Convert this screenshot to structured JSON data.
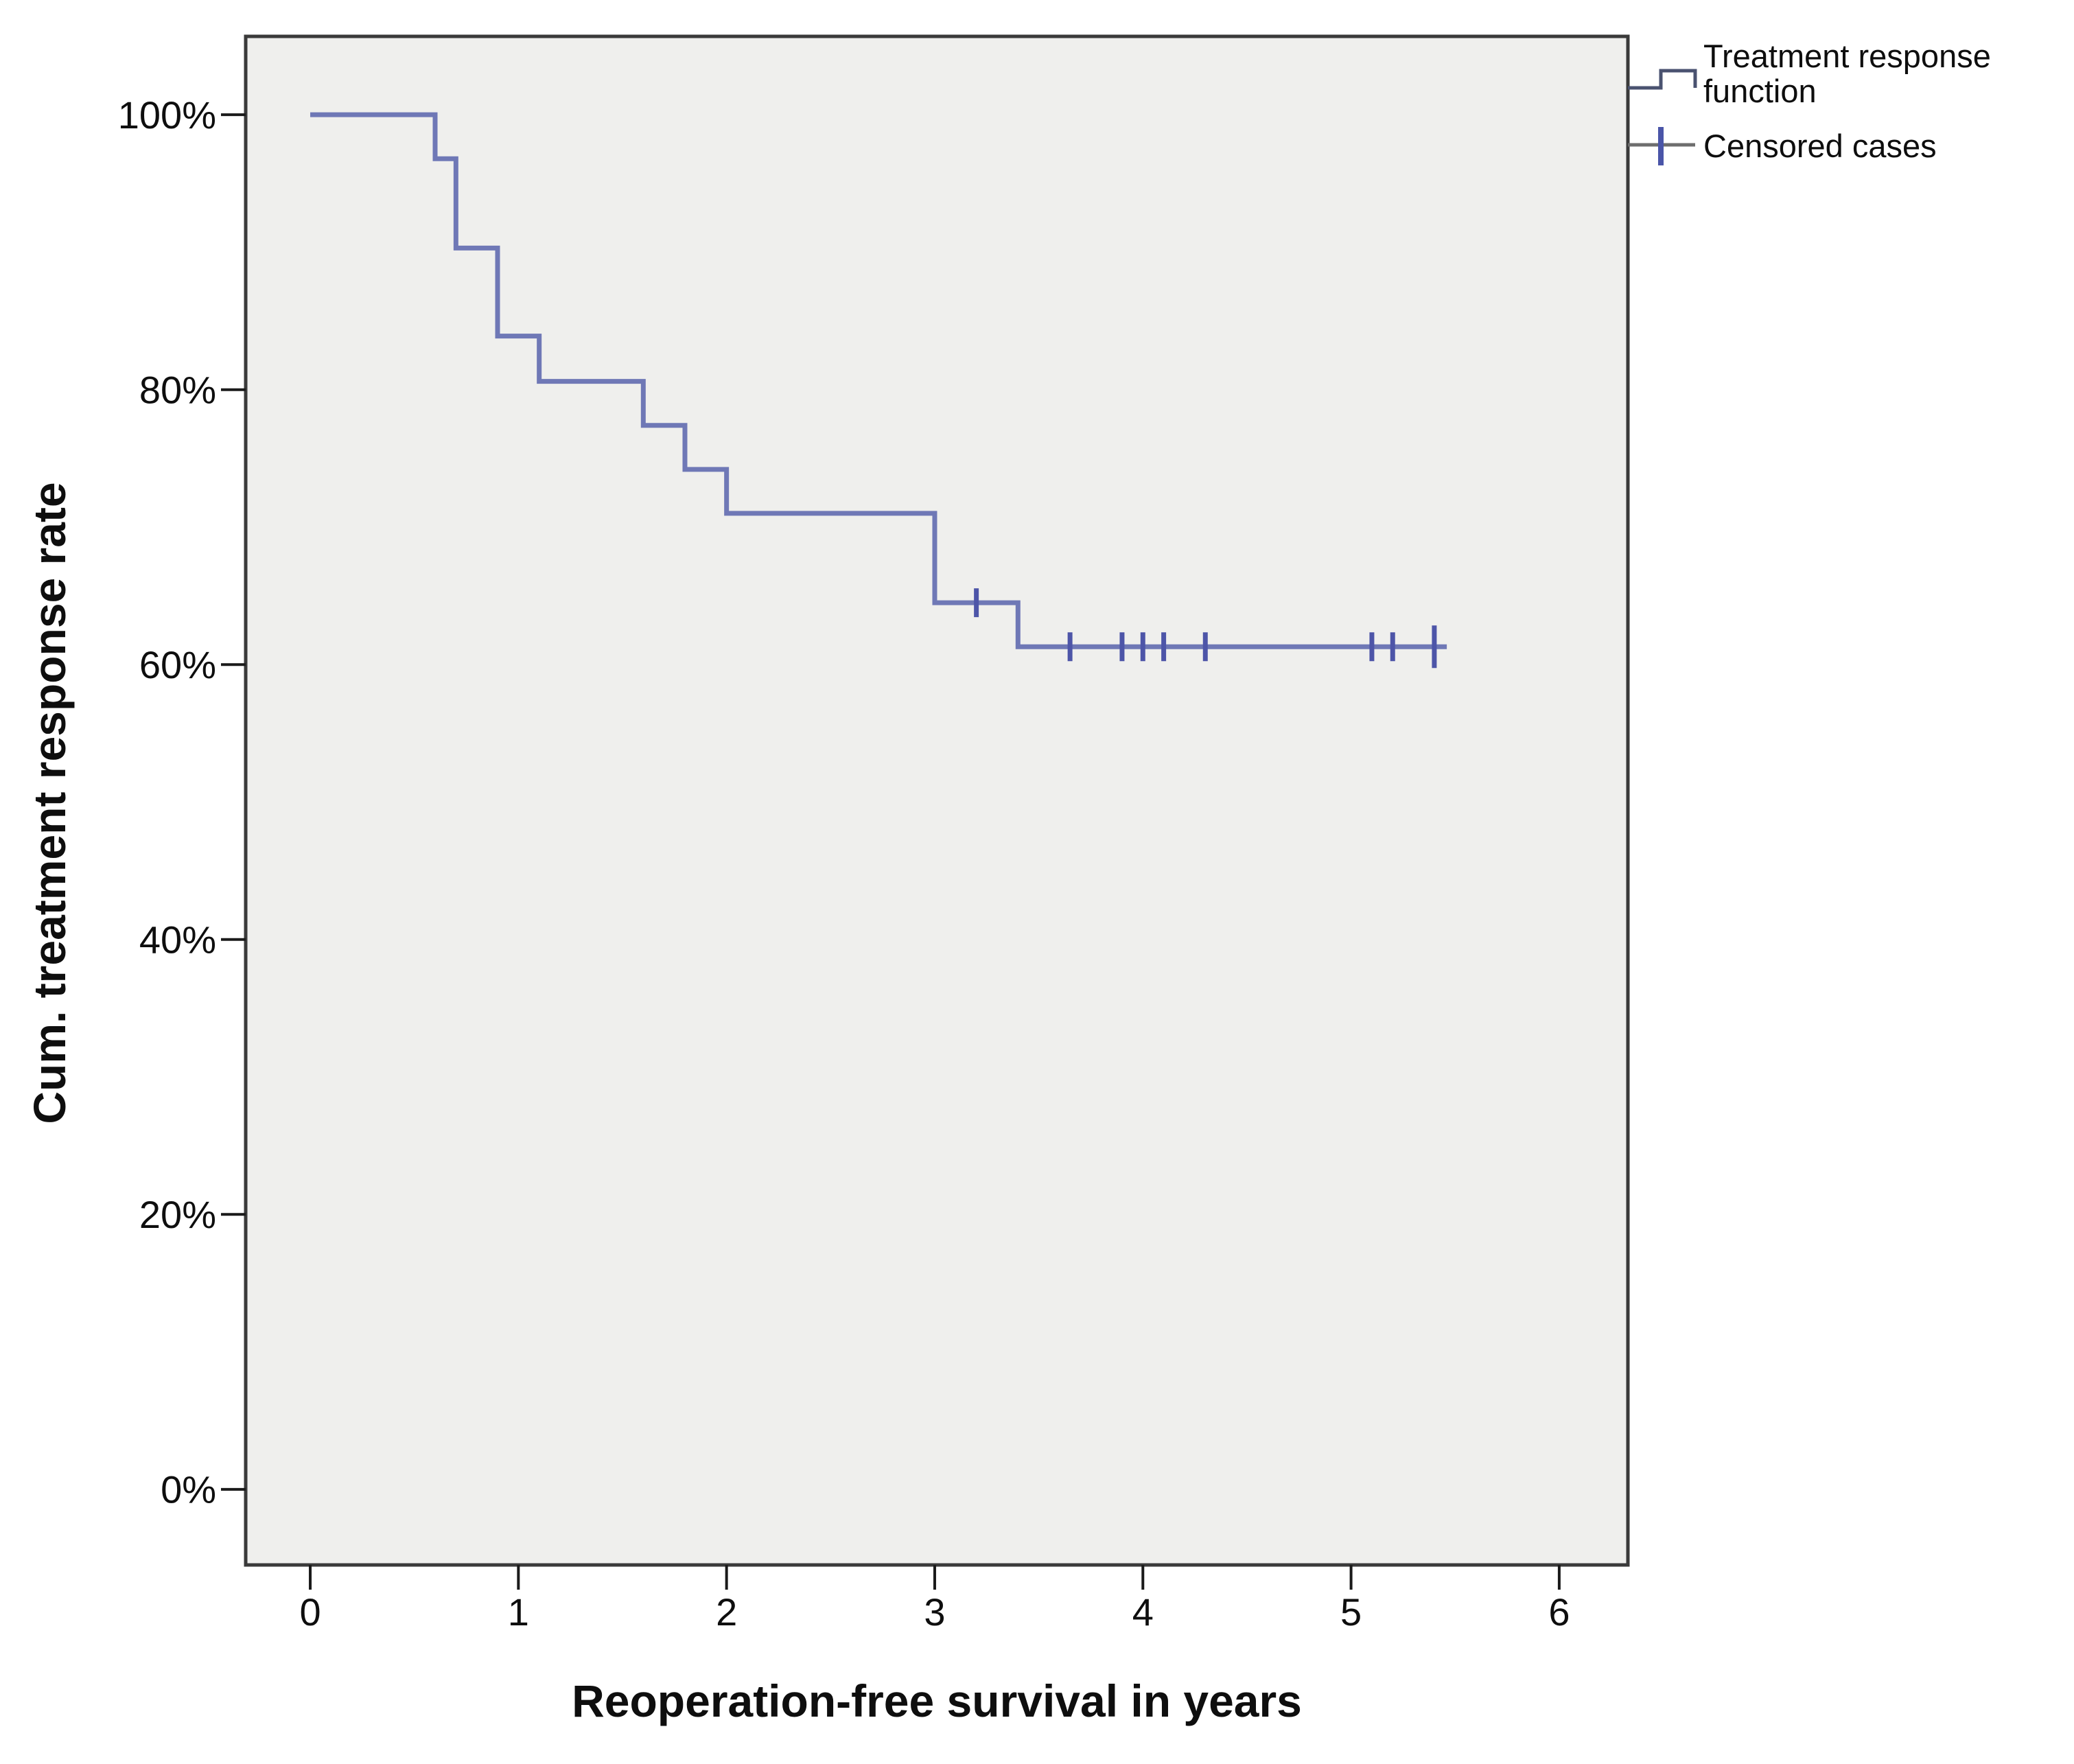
{
  "chart_data": {
    "type": "line",
    "subtype": "kaplan-meier-step",
    "title": "",
    "xlabel": "Reoperation-free survival in years",
    "ylabel": "Cum. treatment response rate",
    "xlim": [
      -0.31,
      6.33
    ],
    "ylim": [
      -5.5,
      105.7
    ],
    "grid": false,
    "plot_background": "#efefed",
    "border_color": "#3a3a3a",
    "tick_color": "#1a1a1a",
    "label_color": "#0e0e0e",
    "x_ticks": {
      "values": [
        0,
        1,
        2,
        3,
        4,
        5,
        6
      ],
      "labels": [
        "0",
        "1",
        "2",
        "3",
        "4",
        "5",
        "6"
      ]
    },
    "y_ticks": {
      "values": [
        0,
        20,
        40,
        60,
        80,
        100
      ],
      "labels": [
        "0%",
        "20%",
        "40%",
        "60%",
        "80%",
        "100%"
      ]
    },
    "series": [
      {
        "name": "Treatment response function",
        "color": "#6f78b6",
        "points": [
          [
            0,
            100
          ],
          [
            0.6,
            96.8
          ],
          [
            0.7,
            90.3
          ],
          [
            0.9,
            83.9
          ],
          [
            1.1,
            80.6
          ],
          [
            1.6,
            77.4
          ],
          [
            1.8,
            74.2
          ],
          [
            2.0,
            71.0
          ],
          [
            3.0,
            64.5
          ],
          [
            3.4,
            61.3
          ]
        ],
        "end_x": 5.46
      }
    ],
    "censored": {
      "name": "Censored cases",
      "color": "#4d55a8",
      "points": [
        {
          "x": 3.2,
          "y": 64.5
        },
        {
          "x": 3.65,
          "y": 61.3
        },
        {
          "x": 3.9,
          "y": 61.3
        },
        {
          "x": 4.0,
          "y": 61.3
        },
        {
          "x": 4.1,
          "y": 61.3
        },
        {
          "x": 4.3,
          "y": 61.3
        },
        {
          "x": 5.1,
          "y": 61.3
        },
        {
          "x": 5.2,
          "y": 61.3
        },
        {
          "x": 5.4,
          "y": 61.3,
          "tall": true
        }
      ]
    },
    "legend": {
      "position": "top-right",
      "items": [
        {
          "label": "Treatment response function",
          "glyph": "step-line",
          "glyph_color": "#4a5270"
        },
        {
          "label": "Censored cases",
          "glyph": "plus-tick",
          "glyph_line_color": "#6e6e6e",
          "glyph_tick_color": "#4a55a8"
        }
      ]
    }
  }
}
